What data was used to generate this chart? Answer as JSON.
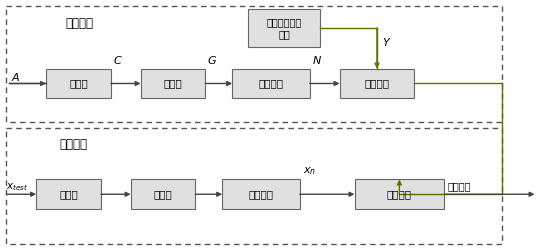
{
  "fig_width": 5.44,
  "fig_height": 2.52,
  "dpi": 100,
  "bg_color": "#ffffff",
  "box_edge_color": "#666666",
  "box_face_color": "#e0e0e0",
  "arrow_color": "#444444",
  "olive_color": "#6b6b00",
  "dashed_box_color": "#555555",
  "top_section_label": "建模阶段",
  "bottom_section_label": "测试阶段",
  "top_boxes": [
    "去基线",
    "归一化",
    "波段选择",
    "建立模型"
  ],
  "bottom_boxes": [
    "去基线",
    "归一化",
    "波段选择",
    "模型计算"
  ],
  "standard_box_label": "标准样本甲醇\n含量",
  "Y_label": "Y",
  "xtest_label": "x",
  "xtest_sub": "test",
  "xn_label": "x",
  "xn_sub": "n",
  "A_label": "A",
  "C_label": "C",
  "G_label": "G",
  "N_label": "N",
  "output_label": "甲醇含量"
}
